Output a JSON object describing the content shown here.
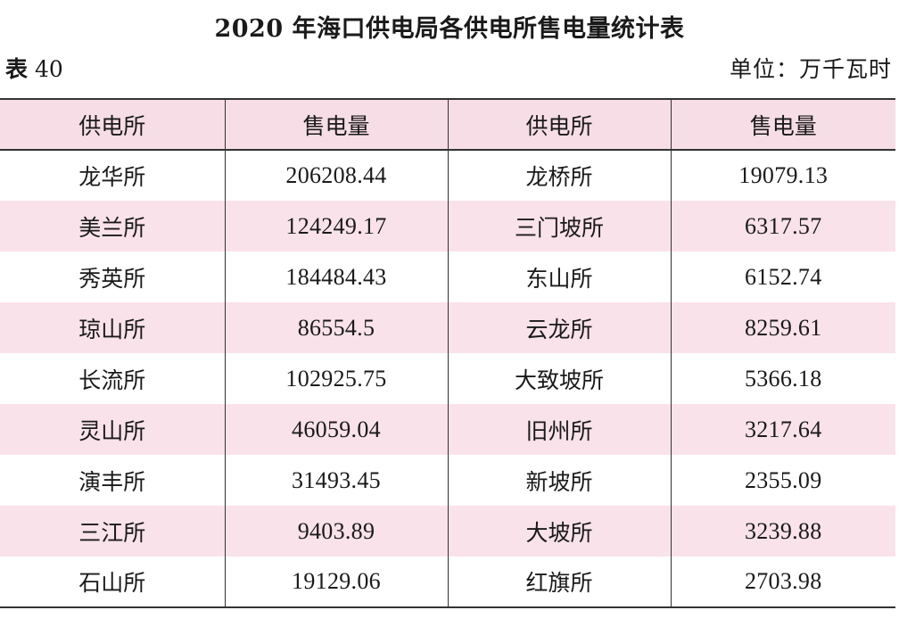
{
  "title": "2020 年海口供电局各供电所售电量统计表",
  "table_label_prefix": "表",
  "table_label_number": "40",
  "unit": "单位：万千瓦时",
  "headers": [
    "供电所",
    "售电量",
    "供电所",
    "售电量"
  ],
  "rows": [
    {
      "station_a": "龙华所",
      "value_a": "206208.44",
      "station_b": "龙桥所",
      "value_b": "19079.13"
    },
    {
      "station_a": "美兰所",
      "value_a": "124249.17",
      "station_b": "三门坡所",
      "value_b": "6317.57"
    },
    {
      "station_a": "秀英所",
      "value_a": "184484.43",
      "station_b": "东山所",
      "value_b": "6152.74"
    },
    {
      "station_a": "琼山所",
      "value_a": "86554.5",
      "station_b": "云龙所",
      "value_b": "8259.61"
    },
    {
      "station_a": "长流所",
      "value_a": "102925.75",
      "station_b": "大致坡所",
      "value_b": "5366.18"
    },
    {
      "station_a": "灵山所",
      "value_a": "46059.04",
      "station_b": "旧州所",
      "value_b": "3217.64"
    },
    {
      "station_a": "演丰所",
      "value_a": "31493.45",
      "station_b": "新坡所",
      "value_b": "2355.09"
    },
    {
      "station_a": "三江所",
      "value_a": "9403.89",
      "station_b": "大坡所",
      "value_b": "3239.88"
    },
    {
      "station_a": "石山所",
      "value_a": "19129.06",
      "station_b": "红旗所",
      "value_b": "2703.98"
    }
  ],
  "colors": {
    "header_background": "#f6dde6",
    "stripe_background": "#f9e2ea",
    "border": "#333333"
  }
}
